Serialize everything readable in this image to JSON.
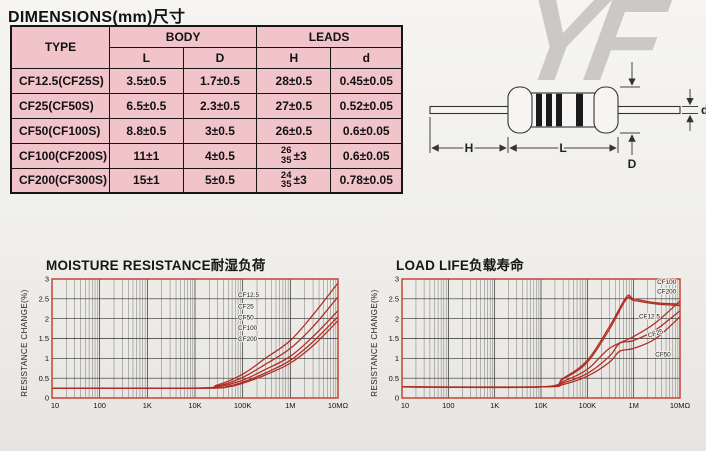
{
  "page": {
    "dimensions_title": "DIMENSIONS(mm)尺寸"
  },
  "table": {
    "headers": {
      "type": "TYPE",
      "body": "BODY",
      "leads": "LEADS",
      "l": "L",
      "d_body": "D",
      "h": "H",
      "d_lead": "d"
    },
    "rows": [
      {
        "type": "CF12.5(CF25S)",
        "l": "3.5±0.5",
        "d": "1.7±0.5",
        "h": "28±0.5",
        "dl": "0.45±0.05"
      },
      {
        "type": "CF25(CF50S)",
        "l": "6.5±0.5",
        "d": "2.3±0.5",
        "h": "27±0.5",
        "dl": "0.52±0.05"
      },
      {
        "type": "CF50(CF100S)",
        "l": "8.8±0.5",
        "d": "3±0.5",
        "h": "26±0.5",
        "dl": "0.6±0.05"
      },
      {
        "type": "CF100(CF200S)",
        "l": "11±1",
        "d": "4±0.5",
        "h": {
          "top": "26",
          "bottom": "35",
          "suffix": "±3"
        },
        "dl": "0.6±0.05"
      },
      {
        "type": "CF200(CF300S)",
        "l": "15±1",
        "d": "5±0.5",
        "h": {
          "top": "24",
          "bottom": "35",
          "suffix": "±3"
        },
        "dl": "0.78±0.05"
      }
    ]
  },
  "diagram": {
    "watermark": "YF",
    "labels": {
      "h": "H",
      "l": "L",
      "d_body": "D",
      "d_lead": "d"
    }
  },
  "colors": {
    "table_pink": "#f1c4c9",
    "chart_red": "#b02b21",
    "frame_red": "#c5392b",
    "grid_dark": "#3a3a3a",
    "watermark_gray": "#cbc9c6"
  },
  "chart_data": [
    {
      "type": "line",
      "title": "MOISTURE RESISTANCE耐湿负荷",
      "ylabel": "RESISTANCE CHANGE(%)",
      "xlabel": "",
      "x_scale": "log",
      "xlim": [
        10,
        10000000
      ],
      "ylim": [
        0,
        3
      ],
      "grid": true,
      "y_ticks": [
        0,
        0.5,
        1,
        1.5,
        2,
        2.5,
        3
      ],
      "y_tick_labels": [
        "0",
        "0.5",
        "1",
        "1.5",
        "2",
        "2.5",
        "3"
      ],
      "x_ticks": [
        10,
        100,
        1000,
        10000,
        100000,
        1000000,
        10000000
      ],
      "x_tick_labels": [
        "10",
        "100",
        "1K",
        "10K",
        "100K",
        "1M",
        "10MΩ"
      ],
      "series": [
        {
          "name": "CF12.5",
          "points": [
            [
              10,
              0.25
            ],
            [
              10000,
              0.25
            ],
            [
              30000,
              0.33
            ],
            [
              100000,
              0.6
            ],
            [
              300000,
              1.0
            ],
            [
              1000000,
              1.45
            ],
            [
              3000000,
              2.1
            ],
            [
              10000000,
              2.9
            ]
          ]
        },
        {
          "name": "CF25",
          "points": [
            [
              10,
              0.25
            ],
            [
              10000,
              0.25
            ],
            [
              30000,
              0.3
            ],
            [
              100000,
              0.52
            ],
            [
              300000,
              0.85
            ],
            [
              1000000,
              1.25
            ],
            [
              3000000,
              1.8
            ],
            [
              10000000,
              2.55
            ]
          ]
        },
        {
          "name": "CF50",
          "points": [
            [
              10,
              0.25
            ],
            [
              12000,
              0.25
            ],
            [
              30000,
              0.28
            ],
            [
              100000,
              0.45
            ],
            [
              300000,
              0.72
            ],
            [
              1000000,
              1.05
            ],
            [
              3000000,
              1.55
            ],
            [
              10000000,
              2.2
            ]
          ]
        },
        {
          "name": "CF100",
          "points": [
            [
              10,
              0.25
            ],
            [
              15000,
              0.25
            ],
            [
              50000,
              0.3
            ],
            [
              100000,
              0.4
            ],
            [
              300000,
              0.63
            ],
            [
              1000000,
              0.95
            ],
            [
              3000000,
              1.42
            ],
            [
              10000000,
              2.05
            ]
          ]
        },
        {
          "name": "CF200",
          "points": [
            [
              10,
              0.25
            ],
            [
              15000,
              0.25
            ],
            [
              50000,
              0.28
            ],
            [
              100000,
              0.37
            ],
            [
              300000,
              0.58
            ],
            [
              1000000,
              0.88
            ],
            [
              3000000,
              1.32
            ],
            [
              10000000,
              1.95
            ]
          ]
        }
      ],
      "labels": [
        {
          "text": "CF12.5",
          "x": 80000,
          "y": 2.55,
          "rot": 0
        },
        {
          "text": "CF25",
          "x": 80000,
          "y": 2.26,
          "rot": 0
        },
        {
          "text": "CF50",
          "x": 80000,
          "y": 1.98,
          "rot": 0
        },
        {
          "text": "CF100",
          "x": 80000,
          "y": 1.71,
          "rot": 0
        },
        {
          "text": "CF200",
          "x": 80000,
          "y": 1.44,
          "rot": 0
        }
      ]
    },
    {
      "type": "line",
      "title": "LOAD LIFE负载寿命",
      "ylabel": "RESISTANCE CHANGE(%)",
      "xlabel": "",
      "x_scale": "log",
      "xlim": [
        10,
        10000000
      ],
      "ylim": [
        0,
        3
      ],
      "grid": true,
      "y_ticks": [
        0,
        0.5,
        1,
        1.5,
        2,
        2.5,
        3
      ],
      "y_tick_labels": [
        "0",
        "0.5",
        "1",
        "1.5",
        "2",
        "2.5",
        "3"
      ],
      "x_ticks": [
        10,
        100,
        1000,
        10000,
        100000,
        1000000,
        10000000
      ],
      "x_tick_labels": [
        "10",
        "100",
        "1K",
        "10K",
        "100K",
        "1M",
        "10MΩ"
      ],
      "series": [
        {
          "name": "CF100",
          "points": [
            [
              10,
              0.28
            ],
            [
              10000,
              0.28
            ],
            [
              30000,
              0.5
            ],
            [
              100000,
              0.95
            ],
            [
              300000,
              1.8
            ],
            [
              700000,
              2.55
            ],
            [
              1000000,
              2.5
            ],
            [
              3000000,
              2.4
            ],
            [
              10000000,
              2.37
            ]
          ]
        },
        {
          "name": "CF200",
          "points": [
            [
              10,
              0.28
            ],
            [
              10000,
              0.28
            ],
            [
              30000,
              0.48
            ],
            [
              100000,
              0.9
            ],
            [
              300000,
              1.73
            ],
            [
              700000,
              2.5
            ],
            [
              1000000,
              2.46
            ],
            [
              3000000,
              2.37
            ],
            [
              10000000,
              2.33
            ]
          ]
        },
        {
          "name": "CF12.5",
          "points": [
            [
              10,
              0.28
            ],
            [
              10000,
              0.28
            ],
            [
              30000,
              0.42
            ],
            [
              100000,
              0.72
            ],
            [
              300000,
              1.25
            ],
            [
              1000000,
              1.55
            ],
            [
              3000000,
              1.9
            ],
            [
              10000000,
              2.45
            ]
          ]
        },
        {
          "name": "CF25",
          "points": [
            [
              10,
              0.28
            ],
            [
              10000,
              0.28
            ],
            [
              30000,
              0.38
            ],
            [
              100000,
              0.62
            ],
            [
              300000,
              1.05
            ],
            [
              500000,
              1.38
            ],
            [
              1000000,
              1.45
            ],
            [
              3000000,
              1.72
            ],
            [
              10000000,
              2.2
            ]
          ]
        },
        {
          "name": "CF50",
          "points": [
            [
              10,
              0.28
            ],
            [
              10000,
              0.28
            ],
            [
              30000,
              0.34
            ],
            [
              100000,
              0.55
            ],
            [
              300000,
              0.9
            ],
            [
              500000,
              1.18
            ],
            [
              1000000,
              1.25
            ],
            [
              3000000,
              1.5
            ],
            [
              10000000,
              2.05
            ]
          ]
        }
      ],
      "labels": [
        {
          "text": "CF100",
          "x": 3200000,
          "y": 2.88,
          "rot": 0
        },
        {
          "text": "CF200",
          "x": 3200000,
          "y": 2.63,
          "rot": 0
        },
        {
          "text": "CF12.5",
          "x": 1300000,
          "y": 2.0,
          "rot": 0
        },
        {
          "text": "CF25",
          "x": 2100000,
          "y": 1.52,
          "rot": -18
        },
        {
          "text": "CF50",
          "x": 2900000,
          "y": 1.05,
          "rot": 0
        }
      ]
    }
  ]
}
